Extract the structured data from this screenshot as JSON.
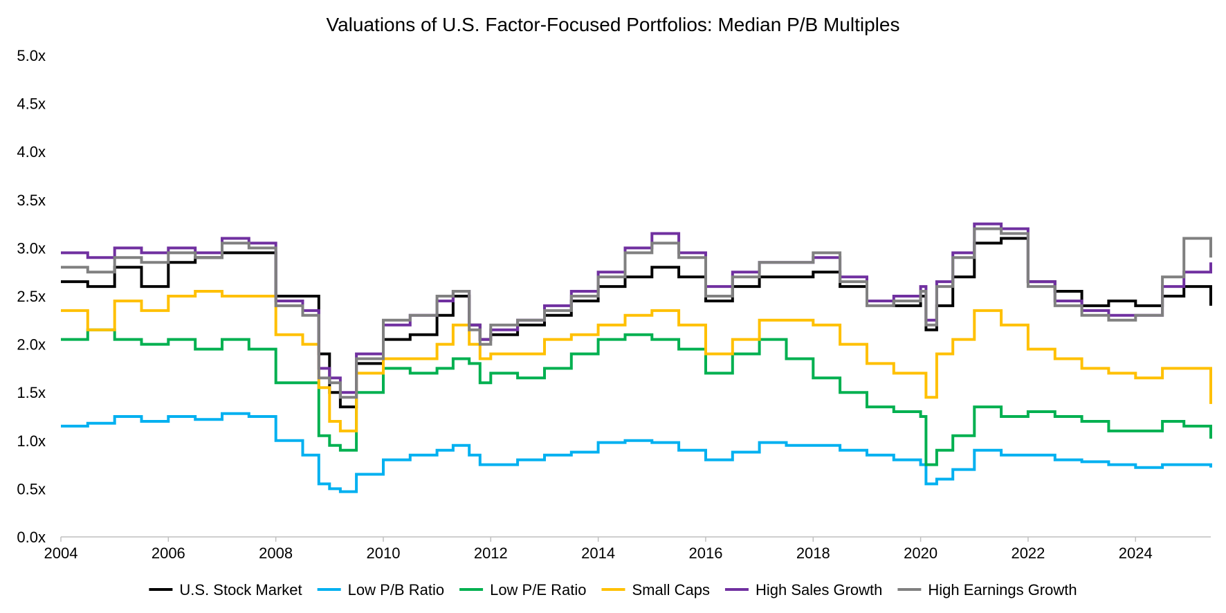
{
  "chart_data": {
    "type": "line",
    "title": "Valuations of U.S. Factor-Focused Portfolios: Median P/B Multiples",
    "xlabel": "",
    "ylabel": "",
    "xlim": [
      2004,
      2025.4
    ],
    "ylim": [
      0,
      5
    ],
    "x_ticks": [
      2004,
      2006,
      2008,
      2010,
      2012,
      2014,
      2016,
      2018,
      2020,
      2022,
      2024
    ],
    "x_tick_labels": [
      "2004",
      "2006",
      "2008",
      "2010",
      "2012",
      "2014",
      "2016",
      "2018",
      "2020",
      "2022",
      "2024"
    ],
    "y_ticks": [
      0,
      0.5,
      1,
      1.5,
      2,
      2.5,
      3,
      3.5,
      4,
      4.5,
      5
    ],
    "y_tick_labels": [
      "0.0x",
      "0.5x",
      "1.0x",
      "1.5x",
      "2.0x",
      "2.5x",
      "3.0x",
      "3.5x",
      "4.0x",
      "4.5x",
      "5.0x"
    ],
    "grid": false,
    "legend_position": "bottom",
    "series": [
      {
        "name": "U.S. Stock Market",
        "color": "#000000",
        "x": [
          2004.0,
          2004.5,
          2005.0,
          2005.5,
          2006.0,
          2006.5,
          2007.0,
          2007.5,
          2008.0,
          2008.5,
          2008.8,
          2009.0,
          2009.2,
          2009.5,
          2010.0,
          2010.5,
          2011.0,
          2011.3,
          2011.6,
          2011.8,
          2012.0,
          2012.5,
          2013.0,
          2013.5,
          2014.0,
          2014.5,
          2015.0,
          2015.5,
          2016.0,
          2016.5,
          2017.0,
          2017.5,
          2018.0,
          2018.5,
          2019.0,
          2019.5,
          2020.0,
          2020.1,
          2020.3,
          2020.6,
          2021.0,
          2021.5,
          2022.0,
          2022.5,
          2023.0,
          2023.5,
          2024.0,
          2024.5,
          2024.9,
          2025.4
        ],
        "y": [
          2.65,
          2.6,
          2.8,
          2.6,
          2.85,
          2.9,
          2.95,
          2.95,
          2.5,
          2.5,
          1.9,
          1.5,
          1.35,
          1.8,
          2.05,
          2.1,
          2.3,
          2.5,
          2.2,
          2.05,
          2.1,
          2.2,
          2.3,
          2.45,
          2.6,
          2.7,
          2.8,
          2.7,
          2.45,
          2.6,
          2.7,
          2.7,
          2.75,
          2.6,
          2.45,
          2.4,
          2.5,
          2.15,
          2.4,
          2.7,
          3.05,
          3.1,
          2.65,
          2.55,
          2.4,
          2.45,
          2.4,
          2.5,
          2.6,
          2.4
        ]
      },
      {
        "name": "Low P/B Ratio",
        "color": "#00B0F0",
        "x": [
          2004.0,
          2004.5,
          2005.0,
          2005.5,
          2006.0,
          2006.5,
          2007.0,
          2007.5,
          2008.0,
          2008.5,
          2008.8,
          2009.0,
          2009.2,
          2009.5,
          2010.0,
          2010.5,
          2011.0,
          2011.3,
          2011.6,
          2011.8,
          2012.0,
          2012.5,
          2013.0,
          2013.5,
          2014.0,
          2014.5,
          2015.0,
          2015.5,
          2016.0,
          2016.5,
          2017.0,
          2017.5,
          2018.0,
          2018.5,
          2019.0,
          2019.5,
          2020.0,
          2020.1,
          2020.3,
          2020.6,
          2021.0,
          2021.5,
          2022.0,
          2022.5,
          2023.0,
          2023.5,
          2024.0,
          2024.5,
          2024.9,
          2025.4
        ],
        "y": [
          1.15,
          1.18,
          1.25,
          1.2,
          1.25,
          1.22,
          1.28,
          1.25,
          1.0,
          0.85,
          0.55,
          0.5,
          0.47,
          0.65,
          0.8,
          0.85,
          0.9,
          0.95,
          0.85,
          0.75,
          0.75,
          0.8,
          0.85,
          0.88,
          0.98,
          1.0,
          0.98,
          0.9,
          0.8,
          0.88,
          0.98,
          0.95,
          0.95,
          0.9,
          0.85,
          0.8,
          0.75,
          0.55,
          0.6,
          0.7,
          0.9,
          0.85,
          0.85,
          0.8,
          0.78,
          0.75,
          0.72,
          0.75,
          0.75,
          0.72
        ]
      },
      {
        "name": "Low P/E Ratio",
        "color": "#00B050",
        "x": [
          2004.0,
          2004.5,
          2005.0,
          2005.5,
          2006.0,
          2006.5,
          2007.0,
          2007.5,
          2008.0,
          2008.5,
          2008.8,
          2009.0,
          2009.2,
          2009.5,
          2010.0,
          2010.5,
          2011.0,
          2011.3,
          2011.6,
          2011.8,
          2012.0,
          2012.5,
          2013.0,
          2013.5,
          2014.0,
          2014.5,
          2015.0,
          2015.5,
          2016.0,
          2016.5,
          2017.0,
          2017.5,
          2018.0,
          2018.5,
          2019.0,
          2019.5,
          2020.0,
          2020.1,
          2020.3,
          2020.6,
          2021.0,
          2021.5,
          2022.0,
          2022.5,
          2023.0,
          2023.5,
          2024.0,
          2024.5,
          2024.9,
          2025.4
        ],
        "y": [
          2.05,
          2.15,
          2.05,
          2.0,
          2.05,
          1.95,
          2.05,
          1.95,
          1.6,
          1.6,
          1.05,
          0.95,
          0.9,
          1.5,
          1.75,
          1.7,
          1.75,
          1.85,
          1.8,
          1.6,
          1.7,
          1.65,
          1.75,
          1.9,
          2.05,
          2.1,
          2.05,
          1.95,
          1.7,
          1.9,
          2.05,
          1.85,
          1.65,
          1.5,
          1.35,
          1.3,
          1.25,
          0.75,
          0.9,
          1.05,
          1.35,
          1.25,
          1.3,
          1.25,
          1.2,
          1.1,
          1.1,
          1.2,
          1.15,
          1.02
        ]
      },
      {
        "name": "Small Caps",
        "color": "#FFC000",
        "x": [
          2004.0,
          2004.5,
          2005.0,
          2005.5,
          2006.0,
          2006.5,
          2007.0,
          2007.5,
          2008.0,
          2008.5,
          2008.8,
          2009.0,
          2009.2,
          2009.5,
          2010.0,
          2010.5,
          2011.0,
          2011.3,
          2011.6,
          2011.8,
          2012.0,
          2012.5,
          2013.0,
          2013.5,
          2014.0,
          2014.5,
          2015.0,
          2015.5,
          2016.0,
          2016.5,
          2017.0,
          2017.5,
          2018.0,
          2018.5,
          2019.0,
          2019.5,
          2020.0,
          2020.1,
          2020.3,
          2020.6,
          2021.0,
          2021.5,
          2022.0,
          2022.5,
          2023.0,
          2023.5,
          2024.0,
          2024.5,
          2024.9,
          2025.4
        ],
        "y": [
          2.35,
          2.15,
          2.45,
          2.35,
          2.5,
          2.55,
          2.5,
          2.5,
          2.1,
          2.0,
          1.55,
          1.2,
          1.1,
          1.7,
          1.85,
          1.85,
          2.0,
          2.2,
          2.0,
          1.85,
          1.9,
          1.9,
          2.05,
          2.1,
          2.2,
          2.3,
          2.35,
          2.2,
          1.9,
          2.05,
          2.25,
          2.25,
          2.2,
          2.0,
          1.8,
          1.7,
          1.7,
          1.45,
          1.9,
          2.05,
          2.35,
          2.2,
          1.95,
          1.85,
          1.75,
          1.7,
          1.65,
          1.75,
          1.75,
          1.38
        ]
      },
      {
        "name": "High Sales Growth",
        "color": "#7030A0",
        "x": [
          2004.0,
          2004.5,
          2005.0,
          2005.5,
          2006.0,
          2006.5,
          2007.0,
          2007.5,
          2008.0,
          2008.5,
          2008.8,
          2009.0,
          2009.2,
          2009.5,
          2010.0,
          2010.5,
          2011.0,
          2011.3,
          2011.6,
          2011.8,
          2012.0,
          2012.5,
          2013.0,
          2013.5,
          2014.0,
          2014.5,
          2015.0,
          2015.5,
          2016.0,
          2016.5,
          2017.0,
          2017.5,
          2018.0,
          2018.5,
          2019.0,
          2019.5,
          2020.0,
          2020.1,
          2020.3,
          2020.6,
          2021.0,
          2021.5,
          2022.0,
          2022.5,
          2023.0,
          2023.5,
          2024.0,
          2024.5,
          2024.9,
          2025.4
        ],
        "y": [
          2.95,
          2.9,
          3.0,
          2.95,
          3.0,
          2.95,
          3.1,
          3.05,
          2.45,
          2.35,
          1.75,
          1.65,
          1.5,
          1.9,
          2.2,
          2.3,
          2.45,
          2.55,
          2.2,
          2.05,
          2.15,
          2.25,
          2.4,
          2.55,
          2.75,
          3.0,
          3.15,
          2.95,
          2.6,
          2.75,
          2.85,
          2.85,
          2.9,
          2.7,
          2.45,
          2.5,
          2.6,
          2.25,
          2.65,
          2.95,
          3.25,
          3.2,
          2.65,
          2.45,
          2.35,
          2.3,
          2.3,
          2.6,
          2.75,
          2.85
        ]
      },
      {
        "name": "High Earnings Growth",
        "color": "#808080",
        "x": [
          2004.0,
          2004.5,
          2005.0,
          2005.5,
          2006.0,
          2006.5,
          2007.0,
          2007.5,
          2008.0,
          2008.5,
          2008.8,
          2009.0,
          2009.2,
          2009.5,
          2010.0,
          2010.5,
          2011.0,
          2011.3,
          2011.6,
          2011.8,
          2012.0,
          2012.5,
          2013.0,
          2013.5,
          2014.0,
          2014.5,
          2015.0,
          2015.5,
          2016.0,
          2016.5,
          2017.0,
          2017.5,
          2018.0,
          2018.5,
          2019.0,
          2019.5,
          2020.0,
          2020.1,
          2020.3,
          2020.6,
          2021.0,
          2021.5,
          2022.0,
          2022.5,
          2023.0,
          2023.5,
          2024.0,
          2024.5,
          2024.9,
          2025.4
        ],
        "y": [
          2.8,
          2.75,
          2.9,
          2.85,
          2.95,
          2.9,
          3.05,
          3.0,
          2.4,
          2.3,
          1.65,
          1.6,
          1.45,
          1.85,
          2.25,
          2.3,
          2.5,
          2.55,
          2.15,
          2.0,
          2.2,
          2.25,
          2.35,
          2.5,
          2.7,
          2.95,
          3.05,
          2.9,
          2.5,
          2.7,
          2.85,
          2.85,
          2.95,
          2.65,
          2.4,
          2.45,
          2.55,
          2.2,
          2.6,
          2.9,
          3.2,
          3.15,
          2.6,
          2.4,
          2.3,
          2.25,
          2.3,
          2.7,
          3.1,
          2.9
        ]
      }
    ]
  }
}
